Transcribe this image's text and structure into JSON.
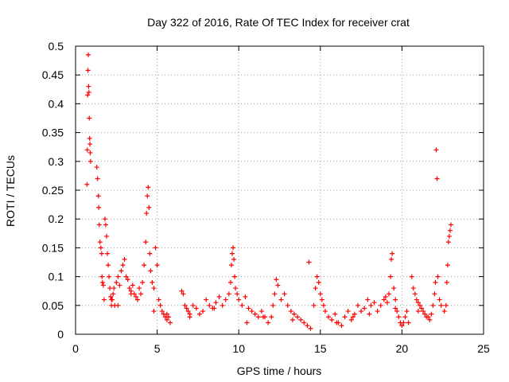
{
  "chart_data": {
    "type": "scatter",
    "title": "Day 322 of 2016, Rate Of TEC Index for receiver crat",
    "xlabel": "GPS time / hours",
    "ylabel": "ROTI / TECUs",
    "xlim": [
      0,
      25
    ],
    "ylim": [
      0,
      0.5
    ],
    "xticks": [
      0,
      5,
      10,
      15,
      20,
      25
    ],
    "xtick_labels": [
      "0",
      "5",
      "10",
      "15",
      "20",
      "25"
    ],
    "yticks": [
      0,
      0.05,
      0.1,
      0.15,
      0.2,
      0.25,
      0.3,
      0.35,
      0.4,
      0.45,
      0.5
    ],
    "ytick_labels": [
      "0",
      "0.05",
      "0.1",
      "0.15",
      "0.2",
      "0.25",
      "0.3",
      "0.35",
      "0.4",
      "0.45",
      "0.5"
    ],
    "grid": true,
    "marker": "plus",
    "color": "#ff0000",
    "series": [
      {
        "x": [
          0.7,
          0.72,
          0.74,
          0.76,
          0.78,
          0.8,
          0.82,
          0.84,
          0.86,
          0.88,
          0.9,
          0.92,
          1.3,
          1.35,
          1.4,
          1.42,
          1.45,
          1.5,
          1.55,
          1.6,
          1.62,
          1.65,
          1.7,
          1.75,
          1.8,
          1.85,
          1.9,
          1.95,
          2.0,
          2.05,
          2.1,
          2.15,
          2.2,
          2.25,
          2.3,
          2.35,
          2.4,
          2.5,
          2.6,
          2.7,
          2.8,
          2.9,
          3.0,
          3.1,
          3.2,
          3.3,
          3.4,
          3.5,
          3.6,
          3.7,
          3.8,
          3.9,
          4.0,
          4.1,
          4.2,
          4.3,
          4.35,
          4.4,
          4.45,
          4.5,
          4.55,
          4.6,
          4.7,
          4.8,
          4.9,
          5.0,
          5.1,
          5.2,
          5.3,
          5.4,
          5.5,
          5.6,
          5.7,
          5.8,
          6.5,
          6.6,
          6.7,
          6.8,
          6.9,
          7.0,
          7.2,
          7.4,
          7.6,
          7.8,
          8.0,
          8.2,
          8.4,
          8.6,
          8.8,
          9.0,
          9.2,
          9.4,
          9.5,
          9.55,
          9.6,
          9.65,
          9.7,
          9.75,
          9.8,
          9.9,
          10.0,
          10.2,
          10.4,
          10.6,
          10.8,
          11.0,
          11.2,
          11.4,
          11.6,
          11.8,
          12.0,
          12.1,
          12.2,
          12.3,
          12.4,
          12.6,
          12.8,
          13.0,
          13.2,
          13.4,
          13.6,
          13.8,
          14.0,
          14.2,
          14.3,
          14.4,
          14.6,
          14.7,
          14.8,
          14.9,
          15.0,
          15.1,
          15.2,
          15.3,
          15.5,
          15.7,
          15.9,
          16.1,
          16.3,
          16.5,
          16.7,
          16.9,
          17.1,
          17.3,
          17.5,
          17.7,
          17.9,
          18.1,
          18.3,
          18.5,
          18.7,
          18.9,
          19.0,
          19.1,
          19.2,
          19.3,
          19.35,
          19.4,
          19.5,
          19.6,
          19.7,
          19.8,
          19.9,
          20.0,
          20.1,
          20.2,
          20.3,
          20.6,
          20.7,
          20.8,
          20.9,
          21.0,
          21.1,
          21.2,
          21.3,
          21.4,
          21.5,
          21.6,
          21.7,
          21.8,
          21.9,
          22.0,
          22.05,
          22.1,
          22.15,
          22.2,
          22.3,
          22.6,
          22.7,
          22.75,
          22.8,
          22.85,
          22.9,
          22.95,
          23.0,
          2.2,
          2.6,
          3.4,
          4.8,
          5.6,
          7.0,
          8.5,
          10.5,
          11.5,
          13.3,
          16.0,
          17.0,
          18.0,
          19.6,
          20.4,
          21.0,
          22.4
        ],
        "y": [
          0.26,
          0.32,
          0.415,
          0.458,
          0.485,
          0.43,
          0.42,
          0.375,
          0.34,
          0.33,
          0.315,
          0.3,
          0.29,
          0.27,
          0.24,
          0.22,
          0.19,
          0.16,
          0.15,
          0.14,
          0.1,
          0.09,
          0.085,
          0.06,
          0.2,
          0.19,
          0.17,
          0.14,
          0.12,
          0.1,
          0.08,
          0.065,
          0.05,
          0.06,
          0.07,
          0.08,
          0.05,
          0.09,
          0.1,
          0.085,
          0.11,
          0.12,
          0.13,
          0.1,
          0.095,
          0.08,
          0.075,
          0.085,
          0.07,
          0.065,
          0.06,
          0.08,
          0.07,
          0.09,
          0.12,
          0.16,
          0.21,
          0.24,
          0.255,
          0.22,
          0.14,
          0.11,
          0.09,
          0.08,
          0.15,
          0.12,
          0.06,
          0.05,
          0.04,
          0.035,
          0.03,
          0.025,
          0.03,
          0.02,
          0.075,
          0.07,
          0.05,
          0.045,
          0.04,
          0.035,
          0.05,
          0.045,
          0.035,
          0.04,
          0.06,
          0.05,
          0.045,
          0.055,
          0.065,
          0.05,
          0.06,
          0.07,
          0.09,
          0.12,
          0.14,
          0.15,
          0.13,
          0.1,
          0.08,
          0.07,
          0.06,
          0.05,
          0.065,
          0.045,
          0.04,
          0.035,
          0.03,
          0.04,
          0.03,
          0.02,
          0.03,
          0.05,
          0.07,
          0.095,
          0.085,
          0.06,
          0.07,
          0.05,
          0.04,
          0.035,
          0.03,
          0.025,
          0.02,
          0.015,
          0.125,
          0.01,
          0.05,
          0.08,
          0.1,
          0.09,
          0.07,
          0.06,
          0.05,
          0.04,
          0.03,
          0.025,
          0.035,
          0.02,
          0.015,
          0.03,
          0.04,
          0.025,
          0.035,
          0.05,
          0.04,
          0.045,
          0.06,
          0.05,
          0.055,
          0.04,
          0.05,
          0.06,
          0.065,
          0.055,
          0.07,
          0.1,
          0.13,
          0.14,
          0.08,
          0.06,
          0.04,
          0.03,
          0.02,
          0.015,
          0.02,
          0.03,
          0.04,
          0.1,
          0.08,
          0.07,
          0.06,
          0.055,
          0.05,
          0.045,
          0.04,
          0.035,
          0.03,
          0.03,
          0.025,
          0.035,
          0.05,
          0.07,
          0.09,
          0.32,
          0.27,
          0.1,
          0.06,
          0.04,
          0.05,
          0.09,
          0.12,
          0.16,
          0.17,
          0.18,
          0.19,
          0.06,
          0.05,
          0.07,
          0.04,
          0.035,
          0.03,
          0.045,
          0.02,
          0.03,
          0.025,
          0.02,
          0.03,
          0.035,
          0.045,
          0.02,
          0.04,
          0.05
        ]
      }
    ]
  }
}
